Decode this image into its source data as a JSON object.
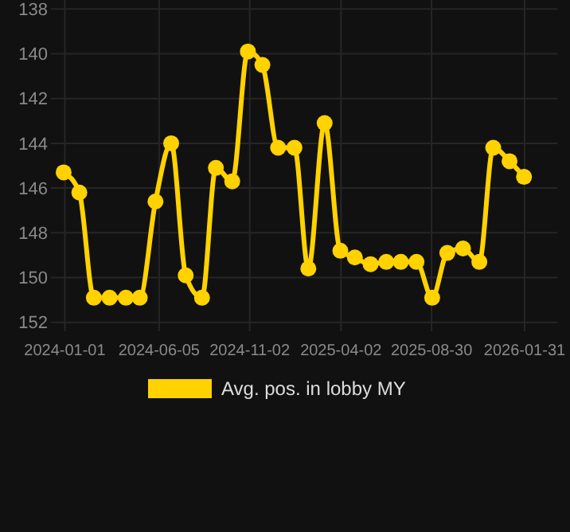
{
  "chart_data": {
    "type": "line",
    "x": [
      "2023-12-30",
      "2024-01-25",
      "2024-02-18",
      "2024-03-15",
      "2024-04-11",
      "2024-05-04",
      "2024-05-30",
      "2024-06-25",
      "2024-07-19",
      "2024-08-15",
      "2024-09-07",
      "2024-10-04",
      "2024-10-30",
      "2024-11-23",
      "2024-12-19",
      "2025-01-15",
      "2025-02-07",
      "2025-03-06",
      "2025-04-01",
      "2025-04-25",
      "2025-05-21",
      "2025-06-16",
      "2025-07-10",
      "2025-08-05",
      "2025-08-31",
      "2025-09-25",
      "2025-10-21",
      "2025-11-17",
      "2025-12-10",
      "2026-01-06",
      "2026-01-30"
    ],
    "series": [
      {
        "name": "Avg. pos. in lobby MY",
        "color": "#ffd200",
        "values": [
          145.3,
          146.2,
          150.9,
          150.9,
          150.9,
          150.9,
          146.6,
          144.0,
          149.9,
          150.9,
          145.1,
          145.7,
          139.9,
          140.5,
          144.2,
          144.2,
          149.6,
          143.1,
          148.8,
          149.1,
          149.4,
          149.3,
          149.3,
          149.3,
          150.9,
          148.9,
          148.7,
          149.3,
          144.2,
          144.8,
          145.5
        ]
      }
    ],
    "xlim": [
      "2023-12-09",
      "2026-03-26"
    ],
    "xticks": [
      "2024-01-01",
      "2024-06-05",
      "2024-11-02",
      "2025-04-02",
      "2025-08-30",
      "2026-01-31"
    ],
    "ylim": [
      152.4,
      137.6
    ],
    "yticks": [
      138,
      140,
      142,
      144,
      146,
      148,
      150,
      152
    ],
    "grid": true,
    "legend": "bottom",
    "marker": "circle",
    "line_style": "solid"
  }
}
